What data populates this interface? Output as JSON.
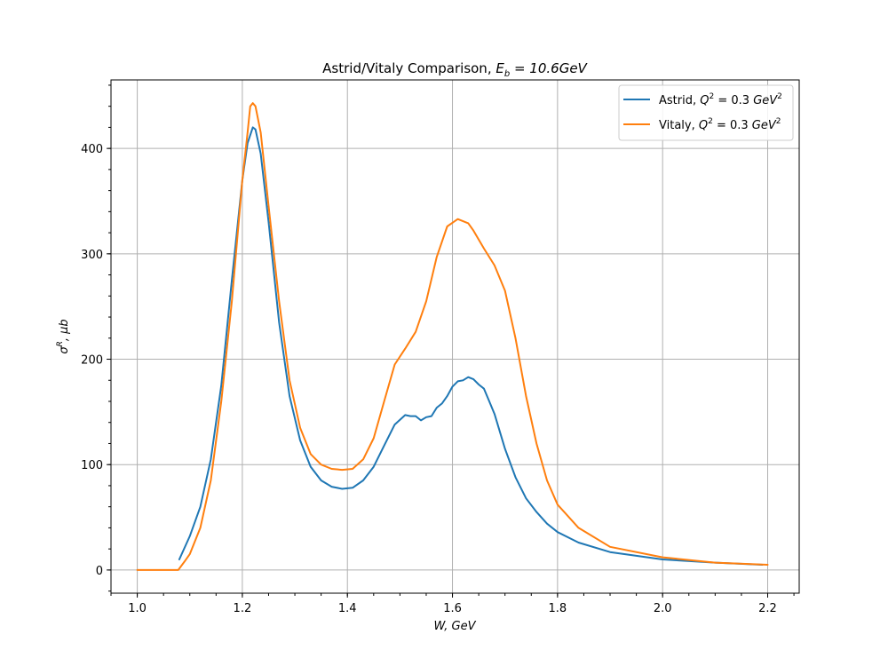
{
  "chart_data": {
    "type": "line",
    "title": "Astrid/Vitaly Comparison, E_b = 10.6GeV",
    "title_parts": {
      "prefix": "Astrid/Vitaly Comparison, ",
      "sym": "E",
      "sub": "b",
      "suffix": " = 10.6GeV"
    },
    "xlabel": "W, GeV",
    "ylabel": "σR, μb",
    "ylabel_parts": {
      "sym": "σ",
      "sup": "R",
      "suffix": ", μb"
    },
    "xlim": [
      0.95,
      2.26
    ],
    "ylim": [
      -22,
      465
    ],
    "xticks": [
      1.0,
      1.2,
      1.4,
      1.6,
      1.8,
      2.0,
      2.2
    ],
    "xtick_labels": [
      "1.0",
      "1.2",
      "1.4",
      "1.6",
      "1.8",
      "2.0",
      "2.2"
    ],
    "yticks": [
      0,
      100,
      200,
      300,
      400
    ],
    "ytick_labels": [
      "0",
      "100",
      "200",
      "300",
      "400"
    ],
    "grid": true,
    "legend_position": "top-right",
    "series": [
      {
        "name": "Astrid, Q^2 = 0.3 GeV^2",
        "label_parts": {
          "prefix": "Astrid, ",
          "sym": "Q",
          "sup": "2",
          "mid": " = 0.3 ",
          "unit": "GeV",
          "unit_sup": "2"
        },
        "color": "#1f77b4",
        "x": [
          1.08,
          1.1,
          1.12,
          1.14,
          1.16,
          1.18,
          1.2,
          1.21,
          1.22,
          1.225,
          1.235,
          1.25,
          1.27,
          1.29,
          1.31,
          1.33,
          1.35,
          1.37,
          1.39,
          1.41,
          1.43,
          1.45,
          1.47,
          1.49,
          1.51,
          1.52,
          1.53,
          1.54,
          1.55,
          1.56,
          1.57,
          1.58,
          1.59,
          1.6,
          1.61,
          1.62,
          1.63,
          1.64,
          1.65,
          1.66,
          1.67,
          1.68,
          1.7,
          1.72,
          1.74,
          1.76,
          1.78,
          1.8,
          1.84,
          1.9,
          2.0,
          2.1,
          2.19
        ],
        "y": [
          10,
          32,
          60,
          105,
          175,
          275,
          370,
          405,
          420,
          418,
          395,
          330,
          235,
          165,
          123,
          98,
          85,
          79,
          77,
          78,
          85,
          98,
          118,
          138,
          147,
          146,
          146,
          142,
          145,
          146,
          154,
          158,
          165,
          174,
          179,
          180,
          183,
          181,
          176,
          172,
          160,
          148,
          115,
          88,
          68,
          55,
          44,
          36,
          26,
          17,
          10,
          7,
          5
        ]
      },
      {
        "name": "Vitaly, Q^2 = 0.3 GeV^2",
        "label_parts": {
          "prefix": "Vitaly, ",
          "sym": "Q",
          "sup": "2",
          "mid": " = 0.3 ",
          "unit": "GeV",
          "unit_sup": "2"
        },
        "color": "#ff7f0e",
        "x": [
          1.0,
          1.05,
          1.078,
          1.09,
          1.1,
          1.12,
          1.14,
          1.16,
          1.18,
          1.2,
          1.21,
          1.215,
          1.22,
          1.225,
          1.235,
          1.25,
          1.27,
          1.29,
          1.31,
          1.33,
          1.35,
          1.37,
          1.39,
          1.41,
          1.43,
          1.45,
          1.47,
          1.49,
          1.51,
          1.53,
          1.55,
          1.57,
          1.59,
          1.61,
          1.63,
          1.64,
          1.66,
          1.68,
          1.7,
          1.72,
          1.74,
          1.76,
          1.78,
          1.8,
          1.84,
          1.9,
          2.0,
          2.1,
          2.2
        ],
        "y": [
          0,
          0,
          0,
          8,
          15,
          40,
          85,
          160,
          255,
          370,
          415,
          440,
          443,
          440,
          415,
          345,
          255,
          180,
          135,
          110,
          100,
          96,
          95,
          96,
          105,
          125,
          160,
          195,
          210,
          226,
          255,
          297,
          326,
          333,
          329,
          322,
          305,
          289,
          265,
          220,
          165,
          120,
          85,
          62,
          40,
          22,
          12,
          7,
          5
        ]
      }
    ]
  }
}
